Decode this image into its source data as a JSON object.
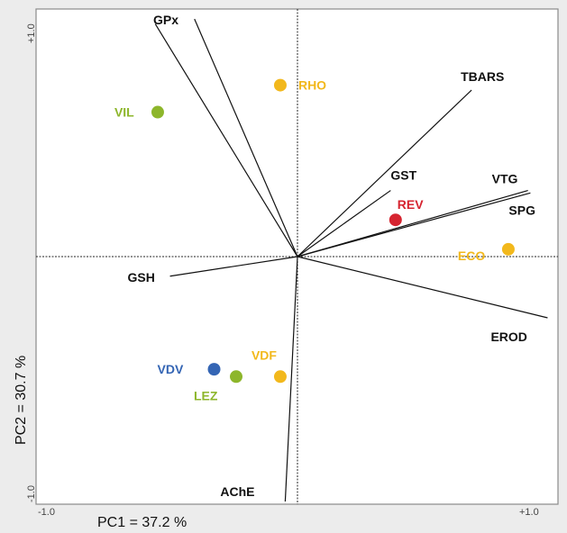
{
  "chart_data": {
    "type": "scatter",
    "title": "",
    "xlabel": "PC1 = 37.2 %",
    "ylabel": "PC2 = 30.7 %",
    "xlim": [
      -1.0,
      1.0
    ],
    "ylim": [
      -1.0,
      1.0
    ],
    "x_ticks": [
      "-1.0",
      "+1.0"
    ],
    "y_ticks": [
      "+1.0",
      "-1.0"
    ],
    "grid": false,
    "variables": [
      {
        "name": "GPx",
        "x": -0.58,
        "y": 0.95
      },
      {
        "name": "GPx",
        "x": -0.42,
        "y": 0.97
      },
      {
        "name": "TBARS",
        "x": 0.71,
        "y": 0.68
      },
      {
        "name": "GST",
        "x": 0.38,
        "y": 0.27
      },
      {
        "name": "VTG",
        "x": 0.94,
        "y": 0.27
      },
      {
        "name": "SPG",
        "x": 0.95,
        "y": 0.26
      },
      {
        "name": "EROD",
        "x": 1.02,
        "y": -0.25
      },
      {
        "name": "GSH",
        "x": -0.52,
        "y": -0.08
      },
      {
        "name": "AChE",
        "x": -0.05,
        "y": -1.0
      }
    ],
    "sites": [
      {
        "name": "RHO",
        "x": -0.07,
        "y": 0.7,
        "color": "#f2b81c"
      },
      {
        "name": "VIL",
        "x": -0.57,
        "y": 0.59,
        "color": "#8db62b"
      },
      {
        "name": "REV",
        "x": 0.4,
        "y": 0.15,
        "color": "#d62430"
      },
      {
        "name": "ECO",
        "x": 0.86,
        "y": 0.03,
        "color": "#f2b81c"
      },
      {
        "name": "VDV",
        "x": -0.34,
        "y": -0.46,
        "color": "#3465b4"
      },
      {
        "name": "LEZ",
        "x": -0.25,
        "y": -0.49,
        "color": "#8db62b"
      },
      {
        "name": "VDF",
        "x": -0.07,
        "y": -0.49,
        "color": "#f2b81c"
      }
    ]
  }
}
